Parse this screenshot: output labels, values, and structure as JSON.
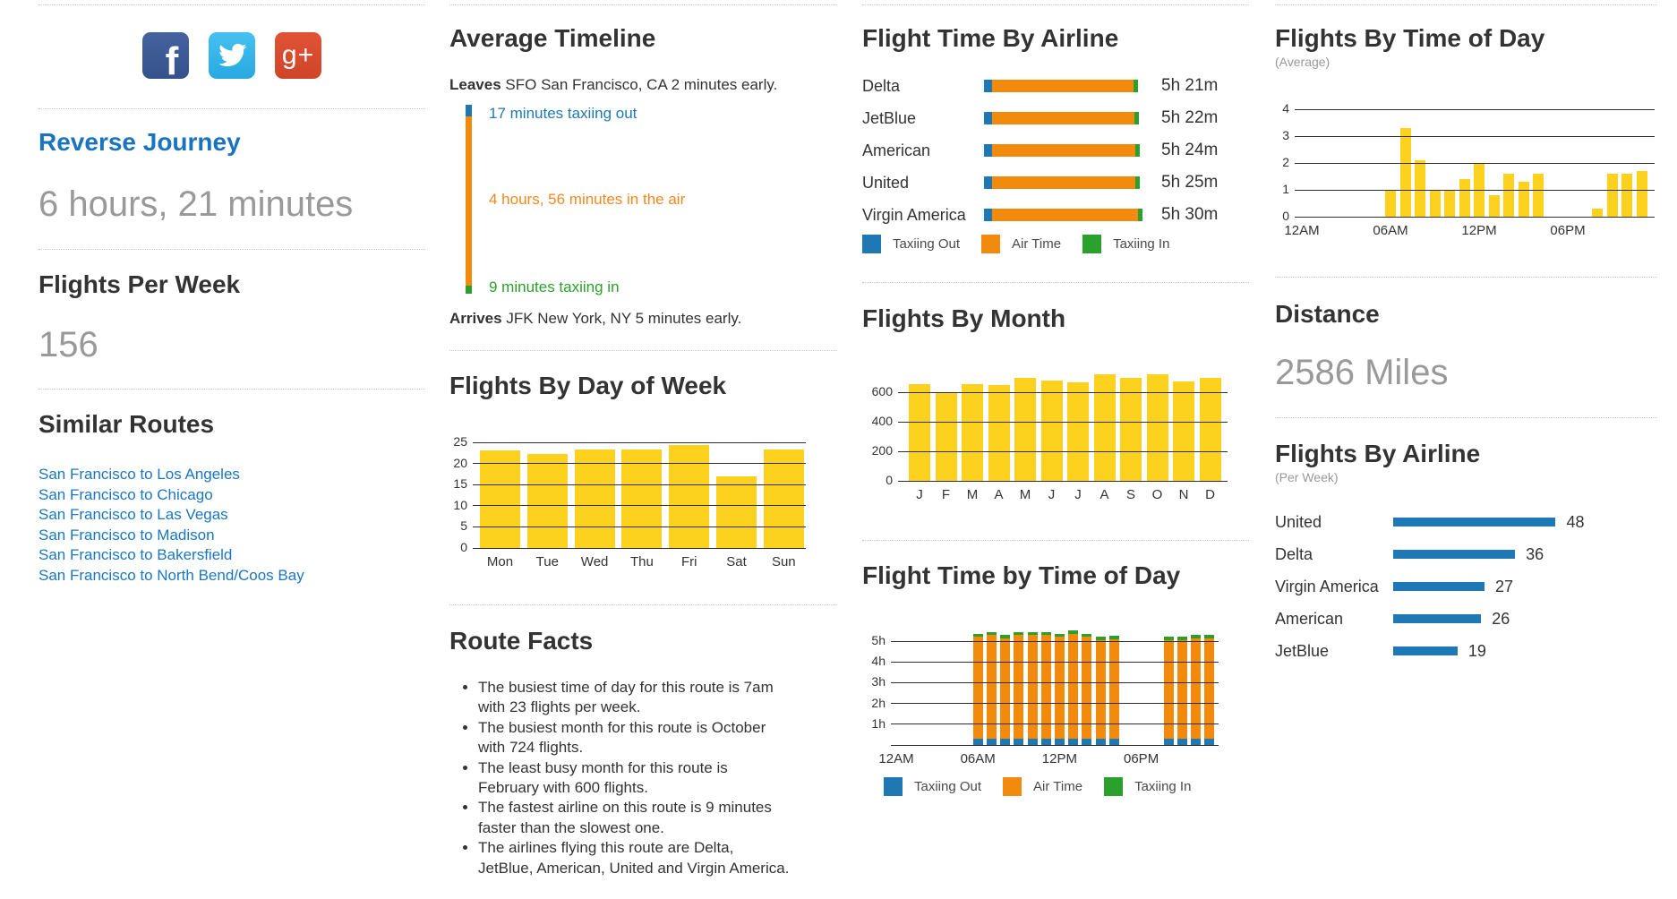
{
  "colors": {
    "taxiing_out": "#1f77b4",
    "air_time": "#f28a0e",
    "taxiing_in": "#2ca02c",
    "bar_yellow": "#fdd21f",
    "flights_bar_blue": "#1f77b4",
    "link_blue": "#1b76c2",
    "heading": "#333333",
    "big_value_gray": "#999999"
  },
  "social": [
    {
      "name": "facebook",
      "glyph": "f"
    },
    {
      "name": "twitter",
      "glyph": "bird"
    },
    {
      "name": "googleplus",
      "glyph": "g+"
    }
  ],
  "left": {
    "reverse_journey_label": "Reverse Journey",
    "reverse_journey_value": "6 hours, 21 minutes",
    "flights_per_week_label": "Flights Per Week",
    "flights_per_week_value": "156",
    "similar_routes_label": "Similar Routes",
    "similar_routes": [
      "San Francisco to Los Angeles",
      "San Francisco to Chicago",
      "San Francisco to Las Vegas",
      "San Francisco to Madison",
      "San Francisco to Bakersfield",
      "San Francisco to North Bend/Coos Bay"
    ]
  },
  "timeline": {
    "title": "Average Timeline",
    "leaves_bold": "Leaves",
    "leaves_rest": " SFO San Francisco, CA 2 minutes early.",
    "taxi_out": "17 minutes taxiing out",
    "air": "4 hours, 56 minutes in the air",
    "taxi_in": "9 minutes taxiing in",
    "arrives_bold": "Arrives",
    "arrives_rest": " JFK New York, NY 5 minutes early."
  },
  "route_facts": {
    "title": "Route Facts",
    "items": [
      "The busiest time of day for this route is 7am with 23 flights per week.",
      "The busiest month for this route is October with 724 flights.",
      "The least busy month for this route is February with 600 flights.",
      "The fastest airline on this route is 9 minutes faster than the slowest one.",
      "The airlines flying this route are Delta, JetBlue, American, United and Virgin America."
    ]
  },
  "distance": {
    "title": "Distance",
    "value": "2586 Miles"
  },
  "chart_data": [
    {
      "id": "flights_by_day_of_week",
      "type": "bar",
      "title": "Flights By Day of Week",
      "categories": [
        "Mon",
        "Tue",
        "Wed",
        "Thu",
        "Fri",
        "Sat",
        "Sun"
      ],
      "values": [
        23.1,
        22.3,
        23.3,
        23.4,
        24.4,
        16.9,
        23.3
      ],
      "yticks": [
        0,
        5,
        10,
        15,
        20,
        25
      ],
      "ylim": [
        0,
        25
      ],
      "grid": true,
      "legend_position": "none"
    },
    {
      "id": "flight_time_by_airline",
      "type": "stacked-bar-horizontal",
      "title": "Flight Time By Airline",
      "categories": [
        "Delta",
        "JetBlue",
        "American",
        "United",
        "Virgin America"
      ],
      "value_labels": [
        "5h 21m",
        "5h 22m",
        "5h 24m",
        "5h 25m",
        "5h 30m"
      ],
      "totals_minutes": [
        321,
        322,
        324,
        325,
        330
      ],
      "taxiing_out_minutes": 17,
      "taxiing_in_minutes": 9,
      "legend": [
        "Taxiing Out",
        "Air Time",
        "Taxiing In"
      ],
      "legend_position": "bottom"
    },
    {
      "id": "flights_by_month",
      "type": "bar",
      "title": "Flights By Month",
      "categories": [
        "J",
        "F",
        "M",
        "A",
        "M",
        "J",
        "J",
        "A",
        "S",
        "O",
        "N",
        "D"
      ],
      "values": [
        655,
        600,
        658,
        648,
        696,
        678,
        666,
        721,
        697,
        724,
        672,
        697
      ],
      "yticks": [
        0,
        200,
        400,
        600
      ],
      "ylim": [
        0,
        740
      ],
      "grid": true,
      "legend_position": "none"
    },
    {
      "id": "flight_time_by_time_of_day",
      "type": "stacked-bar",
      "title": "Flight Time by Time of Day",
      "hours": [
        6,
        7,
        8,
        9,
        10,
        11,
        12,
        13,
        14,
        15,
        16,
        20,
        21,
        22,
        23
      ],
      "totals_hours": [
        5.35,
        5.45,
        5.3,
        5.45,
        5.45,
        5.45,
        5.35,
        5.5,
        5.35,
        5.2,
        5.25,
        5.2,
        5.2,
        5.3,
        5.3
      ],
      "taxiing_out_hours": 0.3,
      "taxiing_in_hours": 0.15,
      "yticks": [
        "1h",
        "2h",
        "3h",
        "4h",
        "5h"
      ],
      "xticks": [
        {
          "label": "12AM",
          "hour": 0
        },
        {
          "label": "06AM",
          "hour": 6
        },
        {
          "label": "12PM",
          "hour": 12
        },
        {
          "label": "06PM",
          "hour": 18
        }
      ],
      "ylim_hours": [
        0,
        5.6
      ],
      "legend": [
        "Taxiing Out",
        "Air Time",
        "Taxiing In"
      ],
      "legend_position": "bottom"
    },
    {
      "id": "flights_by_time_of_day",
      "type": "bar",
      "title": "Flights By Time of Day",
      "subtitle": "(Average)",
      "hours": [
        6,
        7,
        8,
        9,
        10,
        11,
        12,
        13,
        14,
        15,
        16,
        20,
        21,
        22,
        23
      ],
      "values": [
        1,
        3.3,
        2.1,
        1,
        1,
        1.4,
        2,
        0.8,
        1.6,
        1.3,
        1.6,
        0.3,
        1.6,
        1.6,
        1.7
      ],
      "yticks": [
        0,
        1,
        2,
        3,
        4
      ],
      "xticks": [
        {
          "label": "12AM",
          "hour": 0
        },
        {
          "label": "06AM",
          "hour": 6
        },
        {
          "label": "12PM",
          "hour": 12
        },
        {
          "label": "06PM",
          "hour": 18
        }
      ],
      "ylim": [
        0,
        4.4
      ],
      "grid": true,
      "legend_position": "none"
    },
    {
      "id": "flights_by_airline",
      "type": "bar-horizontal",
      "title": "Flights By Airline",
      "subtitle": "(Per Week)",
      "categories": [
        "United",
        "Delta",
        "Virgin America",
        "American",
        "JetBlue"
      ],
      "values": [
        48,
        36,
        27,
        26,
        19
      ],
      "legend_position": "none"
    }
  ]
}
